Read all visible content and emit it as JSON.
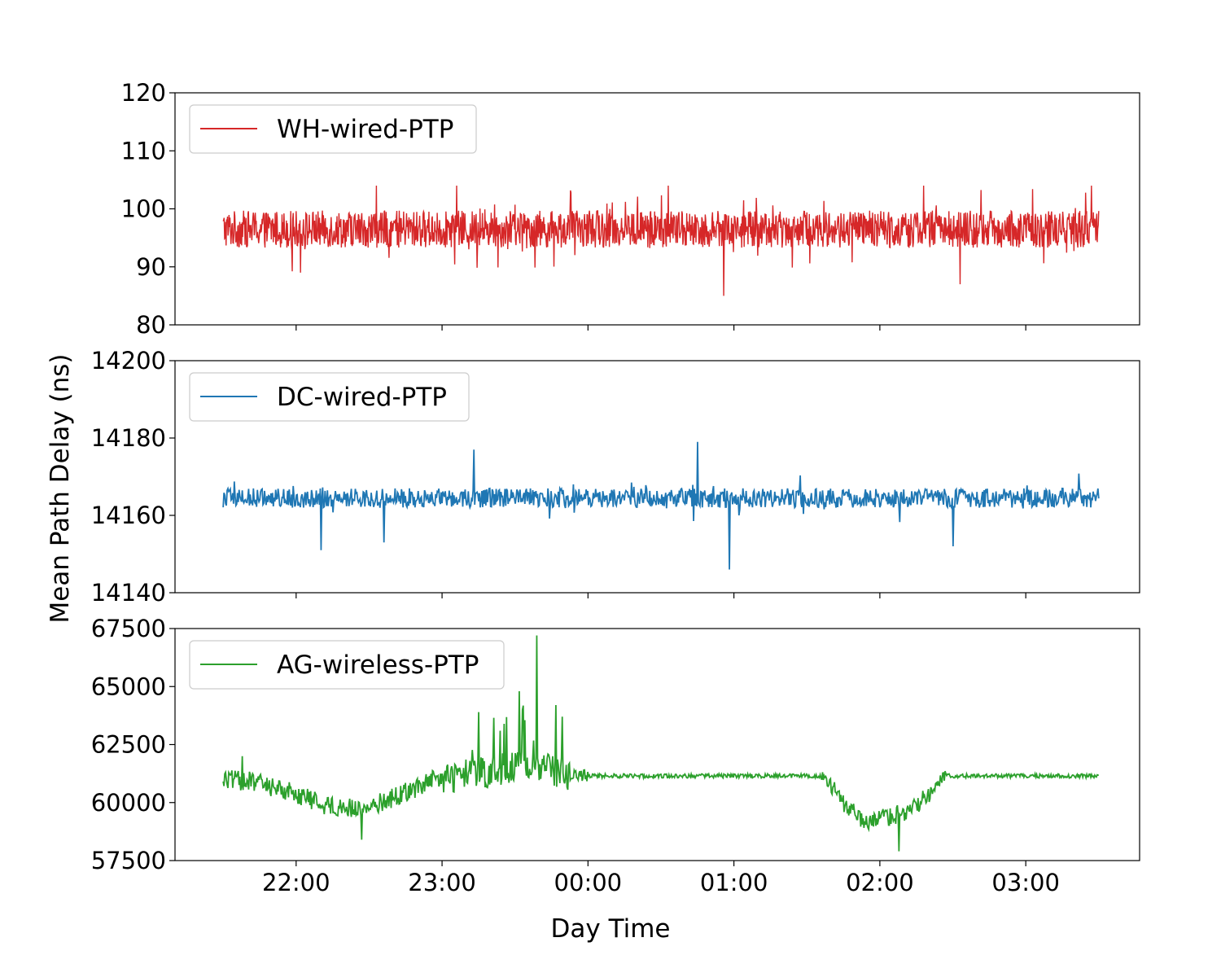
{
  "chart_data": {
    "type": "line",
    "xlabel": "Day Time",
    "ylabel": "Mean Path Delay (ns)",
    "x_ticks": [
      "22:00",
      "23:00",
      "00:00",
      "01:00",
      "02:00",
      "03:00"
    ],
    "x_tick_hours": [
      22,
      23,
      24,
      25,
      26,
      27
    ],
    "x_range_hours": [
      21.17,
      27.78
    ],
    "series_x_range_hours": [
      21.5,
      27.5
    ],
    "grid": false,
    "legend_placement": "upper left",
    "panels": [
      {
        "series": {
          "name": "WH-wired-PTP",
          "color": "#d62728",
          "baseline": 96.5,
          "noise_amplitude": 3.2,
          "spikes": [
            {
              "x": 24.93,
              "y": 85
            },
            {
              "x": 26.55,
              "y": 87
            },
            {
              "x": 22.55,
              "y": 104
            },
            {
              "x": 23.1,
              "y": 104
            },
            {
              "x": 24.55,
              "y": 104
            },
            {
              "x": 26.3,
              "y": 104
            },
            {
              "x": 27.45,
              "y": 104
            }
          ]
        },
        "ylim": [
          80,
          120
        ],
        "y_ticks": [
          80,
          90,
          100,
          110,
          120
        ]
      },
      {
        "series": {
          "name": "DC-wired-PTP",
          "color": "#1f77b4",
          "baseline": 14164.5,
          "noise_amplitude": 2.5,
          "spikes": [
            {
              "x": 24.97,
              "y": 14146
            },
            {
              "x": 22.17,
              "y": 14151
            },
            {
              "x": 26.5,
              "y": 14152
            },
            {
              "x": 24.75,
              "y": 14179
            },
            {
              "x": 23.22,
              "y": 14177
            },
            {
              "x": 22.6,
              "y": 14153
            }
          ]
        },
        "ylim": [
          14140,
          14200
        ],
        "y_ticks": [
          14140,
          14160,
          14180,
          14200
        ]
      },
      {
        "series": {
          "name": "AG-wireless-PTP",
          "color": "#2ca02c",
          "trend": [
            {
              "x": 21.5,
              "y": 61000
            },
            {
              "x": 21.7,
              "y": 60900
            },
            {
              "x": 21.95,
              "y": 60500
            },
            {
              "x": 22.2,
              "y": 59900
            },
            {
              "x": 22.45,
              "y": 59700
            },
            {
              "x": 22.7,
              "y": 60300
            },
            {
              "x": 22.95,
              "y": 61000
            },
            {
              "x": 23.3,
              "y": 61300
            },
            {
              "x": 23.6,
              "y": 61700
            },
            {
              "x": 23.8,
              "y": 61300
            },
            {
              "x": 24.0,
              "y": 61150
            },
            {
              "x": 25.0,
              "y": 61150
            },
            {
              "x": 25.6,
              "y": 61150
            },
            {
              "x": 25.75,
              "y": 60000
            },
            {
              "x": 25.9,
              "y": 59000
            },
            {
              "x": 26.05,
              "y": 59400
            },
            {
              "x": 26.2,
              "y": 59600
            },
            {
              "x": 26.3,
              "y": 60200
            },
            {
              "x": 26.45,
              "y": 61150
            },
            {
              "x": 27.5,
              "y": 61150
            }
          ],
          "spikes": [
            {
              "x": 23.65,
              "y": 67200
            },
            {
              "x": 23.53,
              "y": 64800
            },
            {
              "x": 23.78,
              "y": 64200
            },
            {
              "x": 23.25,
              "y": 63900
            },
            {
              "x": 23.55,
              "y": 64000
            },
            {
              "x": 22.45,
              "y": 58400
            },
            {
              "x": 26.13,
              "y": 57900
            },
            {
              "x": 21.63,
              "y": 62000
            }
          ]
        },
        "ylim": [
          57500,
          67500
        ],
        "y_ticks": [
          57500,
          60000,
          62500,
          65000,
          67500
        ]
      }
    ]
  }
}
